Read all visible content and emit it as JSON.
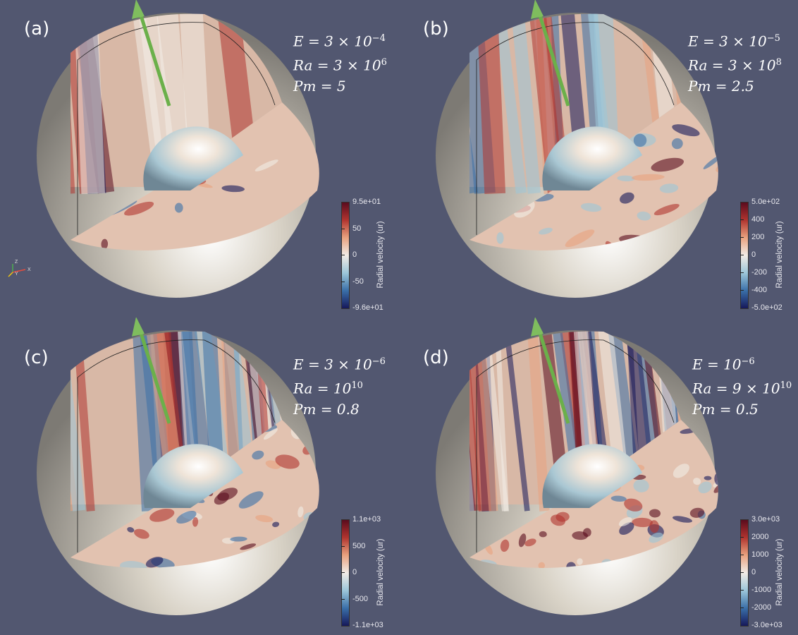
{
  "colorbar_title": "Radial velocity (ur)",
  "colormap": [
    "#16185a",
    "#3a6fa8",
    "#9cc6d9",
    "#f2ece6",
    "#e9a27f",
    "#b1342f",
    "#5a0b1e"
  ],
  "background_color": "#525770",
  "axis_arrow_color": "#6bb04a",
  "shell_color": "#d9d3c7",
  "orientation_axes": {
    "z": "Z",
    "y": "Y",
    "x": "X"
  },
  "panels": [
    {
      "letter": "(a)",
      "E_prefix": "E = 3 × 10",
      "E_exp": "−4",
      "Ra_prefix": "Ra = 3 × 10",
      "Ra_exp": "6",
      "Pm": "Pm = 5",
      "colorbar": {
        "max": "9.5e+01",
        "min": "-9.6e+01",
        "ticks": [
          "50",
          "0",
          "-50"
        ]
      }
    },
    {
      "letter": "(b)",
      "E_prefix": "E = 3 × 10",
      "E_exp": "−5",
      "Ra_prefix": "Ra = 3 × 10",
      "Ra_exp": "8",
      "Pm": "Pm = 2.5",
      "colorbar": {
        "max": "5.0e+02",
        "min": "-5.0e+02",
        "ticks": [
          "400",
          "200",
          "0",
          "-200",
          "-400"
        ]
      }
    },
    {
      "letter": "(c)",
      "E_prefix": "E = 3 × 10",
      "E_exp": "−6",
      "Ra_prefix": "Ra = 10",
      "Ra_exp": "10",
      "Pm": "Pm = 0.8",
      "colorbar": {
        "max": "1.1e+03",
        "min": "-1.1e+03",
        "ticks": [
          "500",
          "0",
          "-500"
        ]
      }
    },
    {
      "letter": "(d)",
      "E_prefix": "E = 10",
      "E_exp": "−6",
      "Ra_prefix": "Ra = 9 × 10",
      "Ra_exp": "10",
      "Pm": "Pm = 0.5",
      "colorbar": {
        "max": "3.0e+03",
        "min": "-3.0e+03",
        "ticks": [
          "2000",
          "1000",
          "0",
          "-1000",
          "-2000"
        ]
      }
    }
  ]
}
